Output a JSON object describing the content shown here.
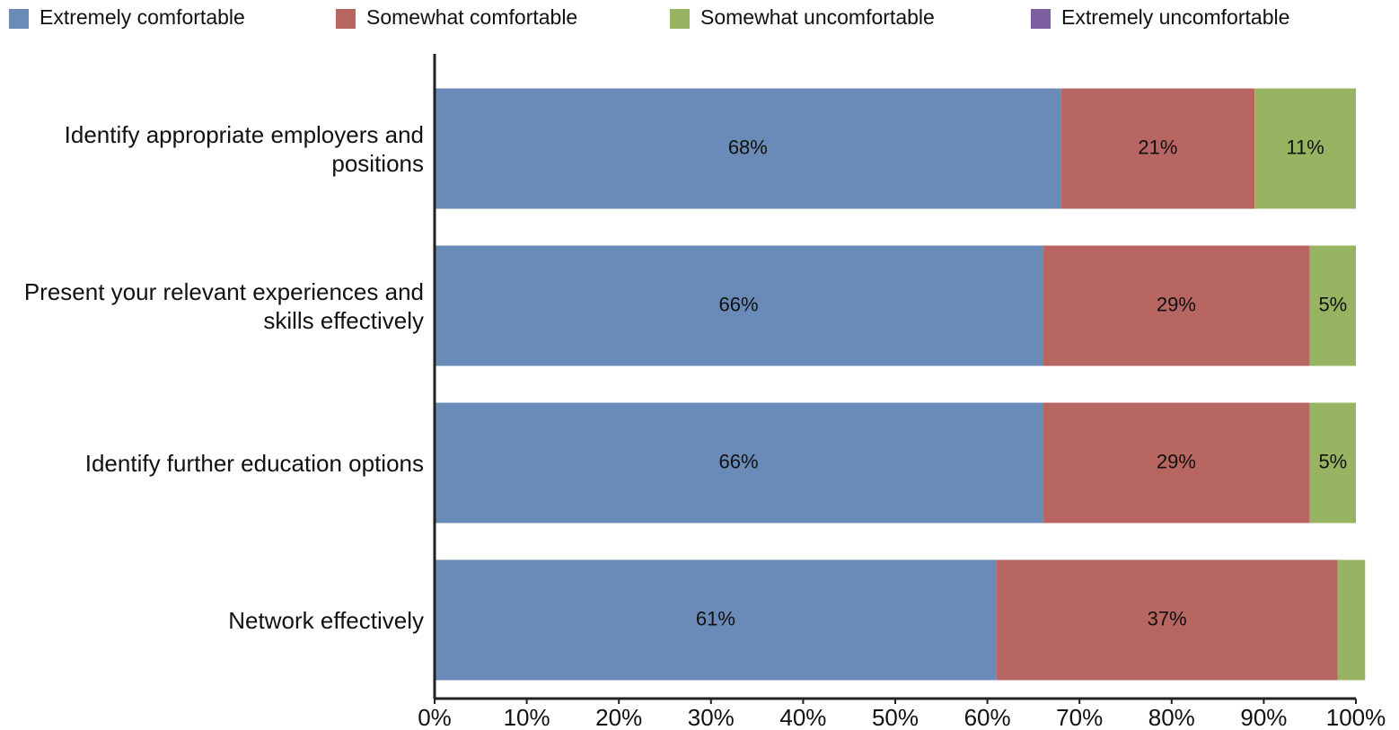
{
  "chart_data": {
    "type": "stacked-bar-horizontal",
    "categories": [
      "Identify appropriate employers and positions",
      "Present your relevant experiences and skills effectively",
      "Identify further education options",
      "Network effectively"
    ],
    "series": [
      {
        "name": "Extremely comfortable",
        "color": "#6a8bb8",
        "values": [
          68,
          66,
          66,
          61
        ],
        "value_labels": [
          "68%",
          "66%",
          "66%",
          "61%"
        ]
      },
      {
        "name": "Somewhat comfortable",
        "color": "#b86662",
        "values": [
          21,
          29,
          29,
          37
        ],
        "value_labels": [
          "21%",
          "29%",
          "29%",
          "37%"
        ]
      },
      {
        "name": "Somewhat uncomfortable",
        "color": "#97b462",
        "values": [
          11,
          5,
          5,
          3
        ],
        "value_labels": [
          "11%",
          "5%",
          "5%",
          null
        ]
      },
      {
        "name": "Extremely uncomfortable",
        "color": "#7c5fa0",
        "values": [
          0,
          0,
          0,
          0
        ]
      }
    ],
    "xlim": [
      0,
      100
    ],
    "xticks": [
      {
        "value": 0,
        "label": "0%"
      },
      {
        "value": 10,
        "label": "10%"
      },
      {
        "value": 20,
        "label": "20%"
      },
      {
        "value": 30,
        "label": "30%"
      },
      {
        "value": 40,
        "label": "40%"
      },
      {
        "value": 50,
        "label": "50%"
      },
      {
        "value": 60,
        "label": "60%"
      },
      {
        "value": 70,
        "label": "70%"
      },
      {
        "value": 80,
        "label": "80%"
      },
      {
        "value": 90,
        "label": "90%"
      },
      {
        "value": 100,
        "label": "100%"
      }
    ],
    "legend": "top"
  }
}
